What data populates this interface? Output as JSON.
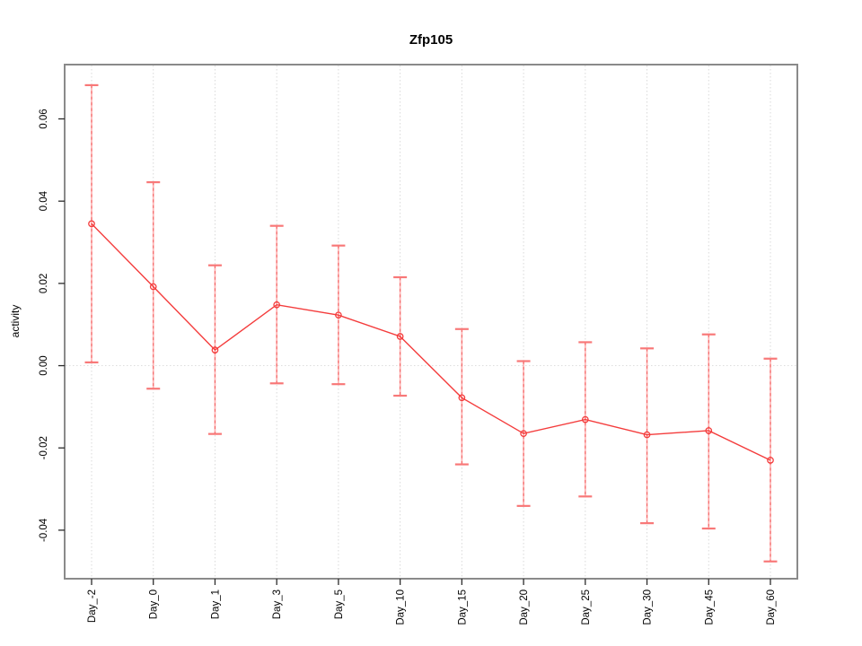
{
  "chart_data": {
    "type": "line",
    "title": "Zfp105",
    "xlabel": "",
    "ylabel": "activity",
    "categories": [
      "Day_-2",
      "Day_0",
      "Day_1",
      "Day_3",
      "Day_5",
      "Day_10",
      "Day_15",
      "Day_20",
      "Day_25",
      "Day_30",
      "Day_45",
      "Day_60"
    ],
    "series": [
      {
        "name": "Zfp105 activity",
        "values": [
          0.0345,
          0.0192,
          0.0038,
          0.0148,
          0.0123,
          0.0071,
          -0.0078,
          -0.0165,
          -0.0131,
          -0.0168,
          -0.0158,
          -0.023
        ],
        "upper": [
          0.0682,
          0.0446,
          0.0244,
          0.034,
          0.0292,
          0.0215,
          0.0089,
          0.0011,
          0.0057,
          0.0042,
          0.0076,
          0.0017
        ],
        "lower": [
          0.0008,
          -0.0056,
          -0.0166,
          -0.0043,
          -0.0045,
          -0.0073,
          -0.024,
          -0.0341,
          -0.0318,
          -0.0383,
          -0.0396,
          -0.0476
        ]
      }
    ],
    "y_ticks": [
      0.06,
      0.04,
      0.02,
      0.0,
      -0.02,
      -0.04
    ],
    "ylim": [
      -0.0518,
      0.0732
    ],
    "grid": {
      "vertical_dotted_per_category": true,
      "horizontal_zero_line_dotted": true
    },
    "legend": null,
    "marker": "open-circle",
    "error_bars": true
  },
  "colors": {
    "series_line": "#f43c3c",
    "marker_stroke": "#f43c3c",
    "error_stem_light": "#ffb3b3",
    "error_stem_dash": "#f26565",
    "error_cap": "#f87878",
    "gridline": "#d9d9d9",
    "zero_line": "#dedede",
    "plot_border": "#8a8a8a",
    "tick": "#2b2b2b",
    "label_text": "#000000"
  }
}
